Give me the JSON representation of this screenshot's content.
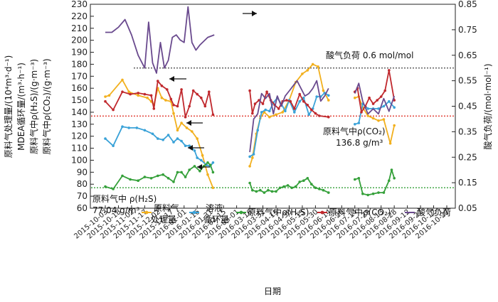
{
  "chart_data": {
    "type": "line",
    "xlabel": "日期",
    "ylabel_left": [
      "原料气处理量/(10⁴m³·d⁻¹)",
      "MDEA循环量/(m³·h⁻¹)",
      "原料气中ρ(H₂S)/(g·m⁻³)",
      "原料气中ρ(CO₂)/(g·m⁻³)"
    ],
    "ylabel_right": "酸气负荷/(mol·mol⁻¹)",
    "ylim_left": [
      60,
      230
    ],
    "ylim_right": [
      0.05,
      0.85
    ],
    "yticks_left": [
      "230",
      "220",
      "210",
      "200",
      "190",
      "180",
      "170",
      "160",
      "150",
      "140",
      "130",
      "120",
      "110",
      "100",
      "90",
      "80",
      "70",
      "60"
    ],
    "yticks_right": [
      "0.85",
      "0.75",
      "0.65",
      "0.55",
      "0.45",
      "0.35",
      "0.25",
      "0.15",
      "0.05"
    ],
    "dates": [
      "2015-10-03",
      "2015-10-18",
      "2015-11-02",
      "2015-11-17",
      "2015-12-02",
      "2015-12-17",
      "2016-01-01",
      "2016-01-16",
      "2016-01-31",
      "2016-02-15",
      "2016-03-01",
      "2016-03-16",
      "2016-03-31",
      "2016-04-15",
      "2016-04-30",
      "2016-05-15",
      "2016-05-30",
      "2016-06-14",
      "2016-06-29",
      "2016-07-14",
      "2016-07-29",
      "2016-08-13",
      "2016-08-28",
      "2016-09-12",
      "2016-09-27",
      "2016-10-12",
      "2016-10-27"
    ],
    "annotations": {
      "acid_load_ref": "酸气负荷 0.6 mol/mol",
      "co2_ref_line1": "原料气中ρ(CO₂)",
      "co2_ref_line2": "136.8 g/m³",
      "h2s_ref_line1": "原料气中 ρ(H₂S)",
      "h2s_ref_line2": "77.04 g/m³"
    },
    "reference_lines": [
      {
        "axis": "left",
        "value": 136.8,
        "color": "#e03a2e"
      },
      {
        "axis": "left",
        "value": 77.04,
        "color": "#35a03a"
      },
      {
        "axis": "right",
        "value": 0.6,
        "color": "#555555"
      }
    ],
    "legend": {
      "treat_l1": "原料气",
      "treat_l2": "处理量",
      "circ_l1": "溶液",
      "circ_l2": "循环量",
      "h2s": "原料气中ρ(H₂S)",
      "co2": "原料气中ρ(CO₂)",
      "load": "酸气负荷"
    },
    "series": [
      {
        "name": "原料气处理量",
        "axis": "left",
        "color": "#f2b01e",
        "segments": [
          [
            [
              0,
              153
            ],
            [
              0.3,
              154
            ],
            [
              1.3,
              167
            ],
            [
              1.8,
              157
            ],
            [
              2.5,
              154
            ],
            [
              3.2,
              152
            ],
            [
              3.5,
              149
            ],
            [
              3.7,
              146
            ],
            [
              4.0,
              160
            ],
            [
              4.3,
              152
            ],
            [
              4.6,
              150
            ],
            [
              5.0,
              149
            ],
            [
              5.2,
              139
            ],
            [
              5.5,
              125
            ],
            [
              5.8,
              131
            ],
            [
              6.2,
              127
            ],
            [
              6.6,
              124
            ],
            [
              7.0,
              118
            ],
            [
              7.4,
              104
            ],
            [
              7.8,
              88
            ],
            [
              8.2,
              77
            ]
          ],
          [
            [
              11.0,
              95
            ],
            [
              11.2,
              102
            ],
            [
              11.5,
              122
            ],
            [
              11.8,
              135
            ],
            [
              12.1,
              140
            ],
            [
              12.5,
              136
            ],
            [
              13.0,
              138
            ],
            [
              13.5,
              140
            ],
            [
              14.0,
              150
            ],
            [
              14.5,
              165
            ],
            [
              15.0,
              172
            ],
            [
              15.4,
              175
            ],
            [
              15.8,
              180
            ],
            [
              16.2,
              178
            ],
            [
              16.6,
              158
            ],
            [
              17.0,
              150
            ]
          ],
          [
            [
              19.0,
              152
            ],
            [
              19.3,
              153
            ],
            [
              19.6,
              144
            ],
            [
              20.0,
              137
            ],
            [
              20.4,
              135
            ],
            [
              20.8,
              133
            ],
            [
              21.2,
              134
            ],
            [
              21.7,
              114
            ],
            [
              22.0,
              129
            ]
          ]
        ]
      },
      {
        "name": "溶液循环量",
        "axis": "left",
        "color": "#3aa2d8",
        "segments": [
          [
            [
              0,
              118
            ],
            [
              0.6,
              112
            ],
            [
              1.3,
              128
            ],
            [
              1.8,
              127
            ],
            [
              2.4,
              127
            ],
            [
              3.0,
              125
            ],
            [
              3.6,
              122
            ],
            [
              4.0,
              118
            ],
            [
              4.4,
              117
            ],
            [
              4.8,
              121
            ],
            [
              5.2,
              115
            ],
            [
              5.5,
              118
            ],
            [
              5.8,
              116
            ],
            [
              6.1,
              112
            ],
            [
              6.4,
              112
            ],
            [
              6.8,
              108
            ],
            [
              7.0,
              102
            ],
            [
              7.3,
              100
            ],
            [
              7.7,
              96
            ],
            [
              8.0,
              95
            ],
            [
              8.2,
              98
            ]
          ],
          [
            [
              11.0,
              103
            ],
            [
              11.3,
              105
            ],
            [
              11.6,
              125
            ],
            [
              11.9,
              140
            ],
            [
              12.2,
              142
            ],
            [
              12.5,
              141
            ],
            [
              12.8,
              148
            ],
            [
              13.1,
              152
            ],
            [
              13.4,
              147
            ],
            [
              13.7,
              141
            ],
            [
              14.0,
              150
            ],
            [
              14.4,
              140
            ],
            [
              14.8,
              149
            ],
            [
              15.1,
              152
            ],
            [
              15.5,
              138
            ],
            [
              15.8,
              143
            ],
            [
              16.1,
              153
            ],
            [
              16.4,
              153
            ],
            [
              16.7,
              156
            ],
            [
              17.0,
              154
            ]
          ],
          [
            [
              19.0,
              130
            ],
            [
              19.3,
              131
            ],
            [
              19.6,
              147
            ],
            [
              20.0,
              143
            ],
            [
              20.4,
              143
            ],
            [
              20.8,
              143
            ],
            [
              21.2,
              145
            ],
            [
              21.6,
              149
            ],
            [
              22.0,
              144
            ]
          ]
        ]
      },
      {
        "name": "原料气中ρ(H₂S)",
        "axis": "left",
        "color": "#35a03a",
        "segments": [
          [
            [
              0,
              78
            ],
            [
              0.6,
              76
            ],
            [
              1.3,
              87
            ],
            [
              1.9,
              84
            ],
            [
              2.5,
              83
            ],
            [
              3.0,
              86
            ],
            [
              3.5,
              85
            ],
            [
              4.0,
              87
            ],
            [
              4.4,
              88
            ],
            [
              4.8,
              85
            ],
            [
              5.2,
              82
            ],
            [
              5.5,
              90
            ],
            [
              5.8,
              90
            ],
            [
              6.1,
              86
            ],
            [
              6.4,
              92
            ],
            [
              6.8,
              95
            ],
            [
              7.2,
              91
            ],
            [
              7.5,
              95
            ],
            [
              7.8,
              98
            ],
            [
              8.0,
              96
            ],
            [
              8.2,
              90
            ]
          ],
          [
            [
              11.0,
              81
            ],
            [
              11.2,
              75
            ],
            [
              11.5,
              74
            ],
            [
              11.8,
              75
            ],
            [
              12.1,
              73
            ],
            [
              12.4,
              75
            ],
            [
              12.7,
              74
            ],
            [
              13.0,
              74
            ],
            [
              13.3,
              77
            ],
            [
              13.6,
              78
            ],
            [
              13.9,
              79
            ],
            [
              14.2,
              77
            ],
            [
              14.5,
              78
            ],
            [
              14.8,
              82
            ],
            [
              15.1,
              83
            ],
            [
              15.4,
              85
            ],
            [
              15.7,
              80
            ],
            [
              16.0,
              77
            ],
            [
              16.3,
              76
            ],
            [
              16.6,
              75
            ],
            [
              17.0,
              73
            ]
          ],
          [
            [
              19.0,
              84
            ],
            [
              19.3,
              85
            ],
            [
              19.6,
              72
            ],
            [
              20.0,
              71
            ],
            [
              20.4,
              72
            ],
            [
              20.8,
              73
            ],
            [
              21.2,
              73
            ],
            [
              21.6,
              83
            ],
            [
              21.8,
              92
            ],
            [
              22.0,
              85
            ]
          ]
        ]
      },
      {
        "name": "原料气中ρ(CO₂)",
        "axis": "left",
        "color": "#c0282d",
        "segments": [
          [
            [
              0,
              149
            ],
            [
              0.6,
              142
            ],
            [
              1.3,
              157
            ],
            [
              1.9,
              155
            ],
            [
              2.5,
              156
            ],
            [
              3.0,
              155
            ],
            [
              3.5,
              154
            ],
            [
              3.7,
              143
            ],
            [
              4.0,
              166
            ],
            [
              4.3,
              162
            ],
            [
              4.7,
              159
            ],
            [
              5.0,
              151
            ],
            [
              5.2,
              146
            ],
            [
              5.5,
              145
            ],
            [
              5.8,
              159
            ],
            [
              6.1,
              136
            ],
            [
              6.4,
              145
            ],
            [
              6.7,
              158
            ],
            [
              7.0,
              155
            ],
            [
              7.3,
              152
            ],
            [
              7.6,
              145
            ],
            [
              7.9,
              157
            ],
            [
              8.2,
              138
            ]
          ],
          [
            [
              11.0,
              158
            ],
            [
              11.2,
              139
            ],
            [
              11.4,
              147
            ],
            [
              11.7,
              150
            ],
            [
              12.0,
              147
            ],
            [
              12.3,
              157
            ],
            [
              12.6,
              150
            ],
            [
              12.9,
              146
            ],
            [
              13.2,
              143
            ],
            [
              13.5,
              149
            ],
            [
              13.8,
              150
            ],
            [
              14.1,
              149
            ],
            [
              14.4,
              143
            ],
            [
              14.8,
              155
            ],
            [
              15.1,
              149
            ],
            [
              15.4,
              146
            ],
            [
              15.7,
              142
            ],
            [
              16.0,
              139
            ],
            [
              16.3,
              137
            ],
            [
              17.0,
              136
            ]
          ],
          [
            [
              19.0,
              157
            ],
            [
              19.2,
              160
            ],
            [
              19.5,
              140
            ],
            [
              19.8,
              145
            ],
            [
              20.1,
              152
            ],
            [
              20.4,
              147
            ],
            [
              20.7,
              150
            ],
            [
              21.0,
              153
            ],
            [
              21.3,
              158
            ],
            [
              21.6,
              175
            ],
            [
              22.0,
              150
            ]
          ]
        ]
      },
      {
        "name": "酸气负荷",
        "axis": "right",
        "color": "#6a4a8e",
        "segments": [
          [
            [
              0,
              0.74
            ],
            [
              0.5,
              0.74
            ],
            [
              1.0,
              0.76
            ],
            [
              1.5,
              0.79
            ],
            [
              2.0,
              0.73
            ],
            [
              2.5,
              0.65
            ],
            [
              3.0,
              0.6
            ],
            [
              3.3,
              0.78
            ],
            [
              3.6,
              0.62
            ],
            [
              3.9,
              0.58
            ],
            [
              4.2,
              0.7
            ],
            [
              4.5,
              0.6
            ],
            [
              4.8,
              0.63
            ],
            [
              5.1,
              0.72
            ],
            [
              5.4,
              0.73
            ],
            [
              5.7,
              0.71
            ],
            [
              6.0,
              0.7
            ],
            [
              6.3,
              0.84
            ],
            [
              6.6,
              0.7
            ],
            [
              6.9,
              0.67
            ],
            [
              7.2,
              0.69
            ],
            [
              7.8,
              0.72
            ],
            [
              8.3,
              0.73
            ]
          ],
          [
            [
              11.0,
              0.27
            ],
            [
              11.3,
              0.4
            ],
            [
              11.6,
              0.42
            ],
            [
              11.9,
              0.5
            ],
            [
              12.2,
              0.48
            ],
            [
              12.5,
              0.5
            ],
            [
              12.8,
              0.42
            ],
            [
              13.1,
              0.49
            ],
            [
              13.4,
              0.45
            ],
            [
              13.7,
              0.49
            ],
            [
              14.0,
              0.51
            ],
            [
              14.3,
              0.53
            ],
            [
              14.6,
              0.55
            ],
            [
              14.9,
              0.52
            ],
            [
              15.2,
              0.49
            ],
            [
              15.5,
              0.5
            ],
            [
              15.8,
              0.52
            ],
            [
              16.1,
              0.55
            ],
            [
              16.4,
              0.47
            ],
            [
              16.7,
              0.49
            ],
            [
              17.0,
              0.52
            ]
          ],
          [
            [
              19.0,
              0.5
            ],
            [
              19.3,
              0.54
            ],
            [
              19.6,
              0.47
            ],
            [
              20.0,
              0.42
            ],
            [
              20.4,
              0.44
            ],
            [
              20.8,
              0.42
            ],
            [
              21.2,
              0.48
            ],
            [
              21.6,
              0.43
            ],
            [
              22.0,
              0.49
            ]
          ]
        ]
      }
    ]
  }
}
